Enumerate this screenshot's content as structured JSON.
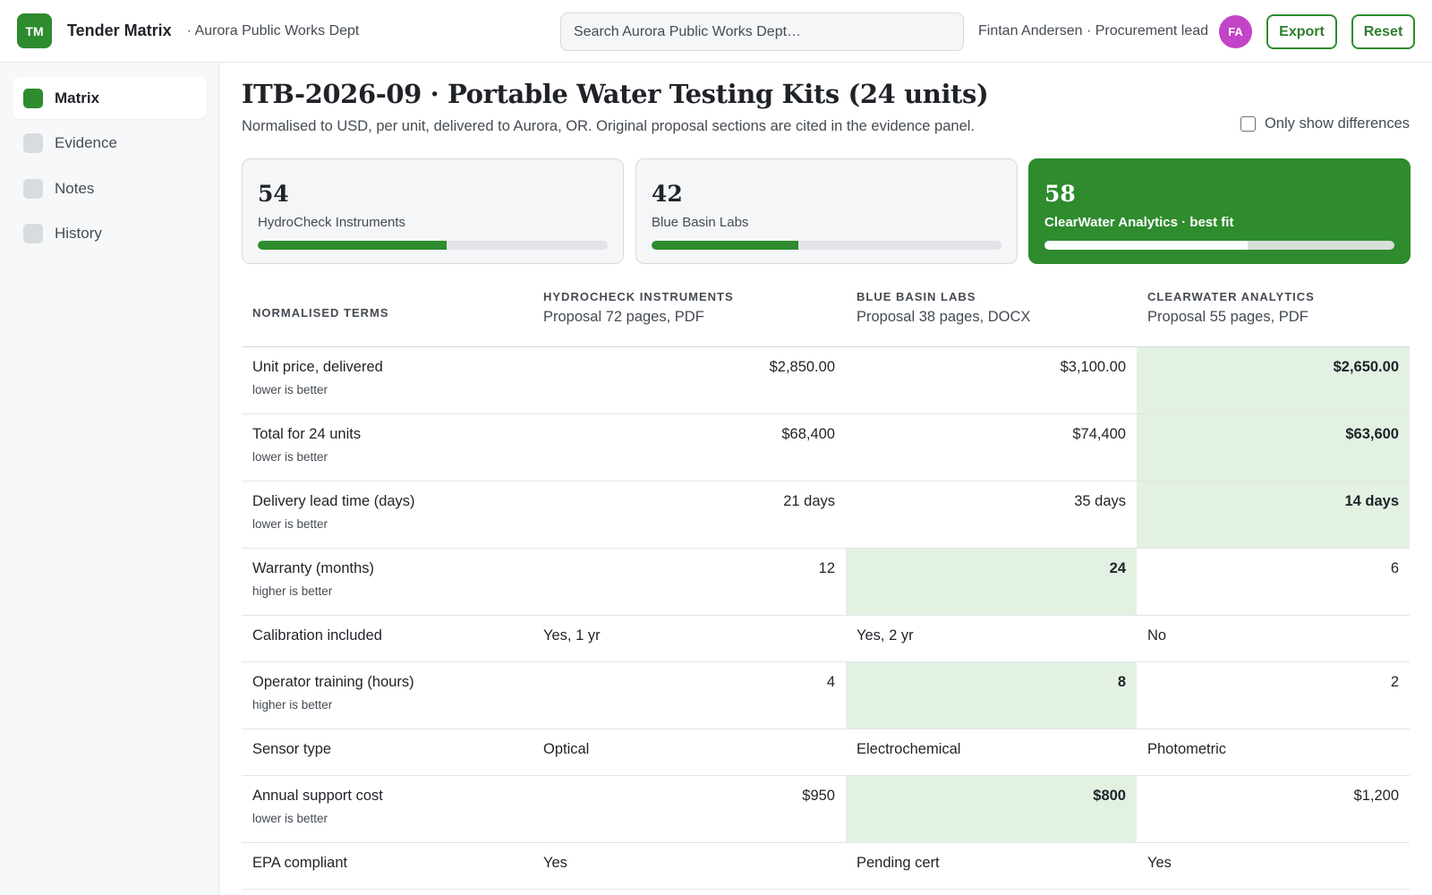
{
  "header": {
    "logo_initials": "TM",
    "app_name": "Tender Matrix",
    "org": "· Aurora Public Works Dept",
    "search_placeholder": "Search Aurora Public Works Dept…",
    "user": "Fintan Andersen · Procurement lead",
    "avatar_initials": "FA",
    "export_label": "Export",
    "reset_label": "Reset"
  },
  "sidebar": {
    "items": [
      {
        "label": "Matrix",
        "active": true
      },
      {
        "label": "Evidence",
        "active": false
      },
      {
        "label": "Notes",
        "active": false
      },
      {
        "label": "History",
        "active": false
      }
    ]
  },
  "main": {
    "title": "ITB-2026-09 · Portable Water Testing Kits (24 units)",
    "subtitle": "Normalised to USD, per unit, delivered to Aurora, OR. Original proposal sections are cited in the evidence panel.",
    "toggle_label": "Only show differences",
    "toggle_checked": false
  },
  "scores": [
    {
      "score": "54",
      "name": "HydroCheck Instruments",
      "fill": 0.54,
      "best": false
    },
    {
      "score": "42",
      "name": "Blue Basin Labs",
      "fill": 0.42,
      "best": false
    },
    {
      "score": "58",
      "name": "ClearWater Analytics · best fit",
      "fill": 0.58,
      "best": true
    }
  ],
  "table": {
    "term_header": "Normalised terms",
    "vendors": [
      {
        "name": "HydroCheck Instruments",
        "meta": "Proposal 72 pages, PDF"
      },
      {
        "name": "Blue Basin Labs",
        "meta": "Proposal 38 pages, DOCX"
      },
      {
        "name": "ClearWater Analytics",
        "meta": "Proposal 55 pages, PDF"
      }
    ],
    "rows": [
      {
        "term": "Unit price, delivered",
        "hint": "lower is better",
        "values": [
          "$2,850.00",
          "$3,100.00",
          "$2,650.00"
        ],
        "best": 2,
        "worst": 1
      },
      {
        "term": "Total for 24 units",
        "hint": "lower is better",
        "values": [
          "$68,400",
          "$74,400",
          "$63,600"
        ],
        "best": 2,
        "worst": 1
      },
      {
        "term": "Delivery lead time (days)",
        "hint": "lower is better",
        "values": [
          "21 days",
          "35 days",
          "14 days"
        ],
        "best": 2,
        "worst": 1
      },
      {
        "term": "Warranty (months)",
        "hint": "higher is better",
        "values": [
          "12",
          "24",
          "6"
        ],
        "best": 1,
        "worst": 2
      },
      {
        "term": "Calibration included",
        "hint": "",
        "values": [
          "Yes, 1 yr",
          "Yes, 2 yr",
          "No"
        ],
        "best": -1,
        "worst": -1
      },
      {
        "term": "Operator training (hours)",
        "hint": "higher is better",
        "values": [
          "4",
          "8",
          "2"
        ],
        "best": 1,
        "worst": 2
      },
      {
        "term": "Sensor type",
        "hint": "",
        "values": [
          "Optical",
          "Electrochemical",
          "Photometric"
        ],
        "best": -1,
        "worst": -1
      },
      {
        "term": "Annual support cost",
        "hint": "lower is better",
        "values": [
          "$950",
          "$800",
          "$1,200"
        ],
        "best": 1,
        "worst": 2
      },
      {
        "term": "EPA compliant",
        "hint": "",
        "values": [
          "Yes",
          "Pending cert",
          "Yes"
        ],
        "best": -1,
        "worst": -1
      }
    ]
  },
  "colors": {
    "accent": "#2e8b2e",
    "best_cell": "#e3f1e3",
    "worst_text": "#b0302b",
    "avatar": "#c244c7"
  }
}
